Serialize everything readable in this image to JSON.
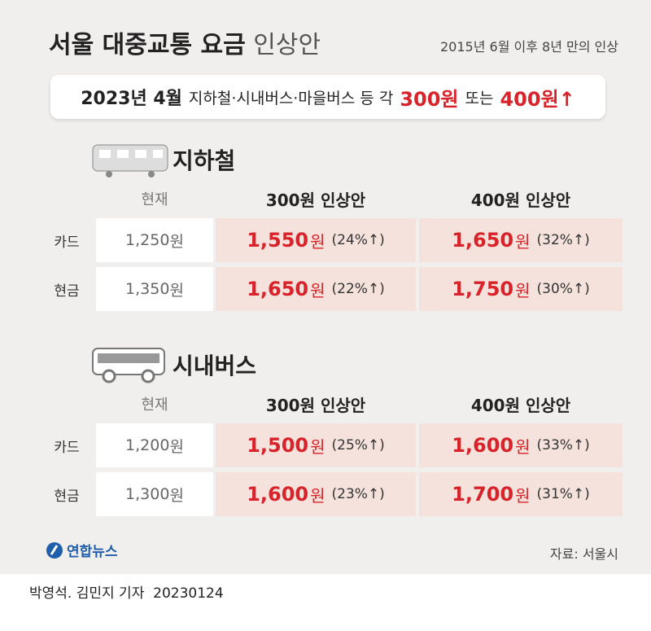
{
  "header": {
    "title": {
      "main": "서울 대중교통 요금",
      "suffix": "인상안"
    },
    "subtitle": "2015년 6월 이후 8년 만의 인상"
  },
  "banner": {
    "date": "2023년 4월",
    "text": "지하철·시내버스·마을버스 등 각",
    "low": "300원",
    "conj": "또는",
    "high": "400원↑"
  },
  "sections": [
    {
      "name": "지하철",
      "headers": [
        "현재",
        "300원 인상안",
        "400원 인상안"
      ],
      "rows": [
        {
          "label": "카드",
          "current": {
            "amount": "1,250",
            "unit": "원"
          },
          "plans": [
            {
              "amount": "1,550",
              "unit": "원",
              "change": "(24%↑)"
            },
            {
              "amount": "1,650",
              "unit": "원",
              "change": "(32%↑)"
            }
          ]
        },
        {
          "label": "현금",
          "current": {
            "amount": "1,350",
            "unit": "원"
          },
          "plans": [
            {
              "amount": "1,650",
              "unit": "원",
              "change": "(22%↑)"
            },
            {
              "amount": "1,750",
              "unit": "원",
              "change": "(30%↑)"
            }
          ]
        }
      ]
    },
    {
      "name": "시내버스",
      "headers": [
        "현재",
        "300원 인상안",
        "400원 인상안"
      ],
      "rows": [
        {
          "label": "카드",
          "current": {
            "amount": "1,200",
            "unit": "원"
          },
          "plans": [
            {
              "amount": "1,500",
              "unit": "원",
              "change": "(25%↑)"
            },
            {
              "amount": "1,600",
              "unit": "원",
              "change": "(33%↑)"
            }
          ]
        },
        {
          "label": "현금",
          "current": {
            "amount": "1,300",
            "unit": "원"
          },
          "plans": [
            {
              "amount": "1,600",
              "unit": "원",
              "change": "(23%↑)"
            },
            {
              "amount": "1,700",
              "unit": "원",
              "change": "(31%↑)"
            }
          ]
        }
      ]
    }
  ],
  "footer": {
    "logo": "연합뉴스",
    "source": "자료: 서울시"
  },
  "byline": {
    "reporters": "박영석. 김민지 기자",
    "date": "20230124"
  }
}
